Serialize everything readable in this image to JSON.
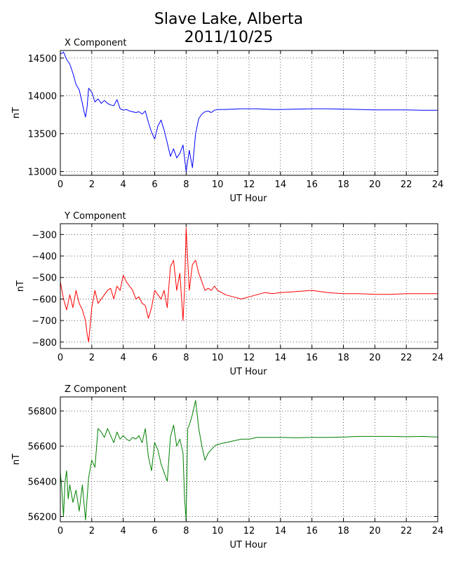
{
  "figure": {
    "title_line1": "Slave Lake, Alberta",
    "title_line2": "2011/10/25"
  },
  "chart_data": [
    {
      "type": "line",
      "title": "X Component",
      "xlabel": "UT Hour",
      "ylabel": "nT",
      "xlim": [
        0,
        24
      ],
      "ylim": [
        12950,
        14600
      ],
      "xticks": [
        0,
        2,
        4,
        6,
        8,
        10,
        12,
        14,
        16,
        18,
        20,
        22,
        24
      ],
      "yticks": [
        13000,
        13500,
        14000,
        14500
      ],
      "grid": true,
      "color": "#0000ff",
      "x": [
        0,
        0.2,
        0.4,
        0.6,
        0.8,
        1.0,
        1.2,
        1.4,
        1.5,
        1.6,
        1.7,
        1.8,
        2.0,
        2.2,
        2.4,
        2.6,
        2.8,
        3.0,
        3.2,
        3.4,
        3.6,
        3.8,
        4.0,
        4.2,
        4.4,
        4.6,
        4.8,
        5.0,
        5.2,
        5.4,
        5.6,
        5.8,
        6.0,
        6.2,
        6.4,
        6.6,
        6.8,
        7.0,
        7.2,
        7.4,
        7.6,
        7.8,
        8.0,
        8.2,
        8.4,
        8.6,
        8.8,
        9.0,
        9.2,
        9.4,
        9.6,
        9.8,
        10.0,
        10.5,
        11.0,
        11.5,
        12.0,
        12.5,
        13.0,
        13.5,
        14.0,
        15.0,
        16.0,
        17.0,
        18.0,
        19.0,
        20.0,
        21.0,
        22.0,
        23.0,
        24.0
      ],
      "y": [
        14550,
        14580,
        14480,
        14420,
        14300,
        14150,
        14080,
        13900,
        13800,
        13720,
        13850,
        14100,
        14050,
        13920,
        13960,
        13900,
        13940,
        13900,
        13880,
        13870,
        13950,
        13830,
        13810,
        13820,
        13800,
        13790,
        13780,
        13790,
        13760,
        13800,
        13650,
        13520,
        13430,
        13600,
        13680,
        13550,
        13380,
        13200,
        13300,
        13180,
        13240,
        13350,
        13000,
        13280,
        13050,
        13500,
        13700,
        13760,
        13790,
        13800,
        13780,
        13810,
        13820,
        13820,
        13825,
        13830,
        13830,
        13830,
        13825,
        13820,
        13820,
        13825,
        13830,
        13830,
        13825,
        13820,
        13815,
        13815,
        13815,
        13810,
        13810
      ]
    },
    {
      "type": "line",
      "title": "Y Component",
      "xlabel": "UT Hour",
      "ylabel": "nT",
      "xlim": [
        0,
        24
      ],
      "ylim": [
        -830,
        -250
      ],
      "xticks": [
        0,
        2,
        4,
        6,
        8,
        10,
        12,
        14,
        16,
        18,
        20,
        22,
        24
      ],
      "yticks": [
        -800,
        -700,
        -600,
        -500,
        -400,
        -300
      ],
      "grid": true,
      "color": "#ff0000",
      "x": [
        0,
        0.2,
        0.4,
        0.6,
        0.8,
        1.0,
        1.2,
        1.4,
        1.6,
        1.7,
        1.8,
        2.0,
        2.2,
        2.4,
        2.6,
        2.8,
        3.0,
        3.2,
        3.4,
        3.6,
        3.8,
        4.0,
        4.2,
        4.4,
        4.6,
        4.8,
        5.0,
        5.2,
        5.4,
        5.6,
        5.8,
        6.0,
        6.2,
        6.4,
        6.6,
        6.8,
        7.0,
        7.2,
        7.4,
        7.6,
        7.8,
        7.9,
        8.0,
        8.1,
        8.2,
        8.4,
        8.6,
        8.8,
        9.0,
        9.2,
        9.4,
        9.6,
        9.8,
        10.0,
        10.5,
        11.0,
        11.5,
        12.0,
        12.5,
        13.0,
        13.5,
        14.0,
        15.0,
        16.0,
        17.0,
        18.0,
        19.0,
        20.0,
        21.0,
        22.0,
        23.0,
        24.0
      ],
      "y": [
        -520,
        -600,
        -650,
        -580,
        -640,
        -560,
        -620,
        -650,
        -700,
        -760,
        -800,
        -640,
        -560,
        -620,
        -600,
        -580,
        -560,
        -550,
        -600,
        -540,
        -560,
        -490,
        -520,
        -540,
        -560,
        -600,
        -590,
        -620,
        -630,
        -690,
        -640,
        -560,
        -580,
        -600,
        -560,
        -640,
        -450,
        -420,
        -560,
        -480,
        -700,
        -550,
        -270,
        -420,
        -560,
        -440,
        -420,
        -480,
        -520,
        -560,
        -550,
        -560,
        -540,
        -560,
        -580,
        -590,
        -600,
        -590,
        -580,
        -570,
        -575,
        -570,
        -565,
        -560,
        -570,
        -575,
        -575,
        -578,
        -578,
        -575,
        -575,
        -575
      ]
    },
    {
      "type": "line",
      "title": "Z Component",
      "xlabel": "UT Hour",
      "ylabel": "nT",
      "xlim": [
        0,
        24
      ],
      "ylim": [
        56170,
        56880
      ],
      "xticks": [
        0,
        2,
        4,
        6,
        8,
        10,
        12,
        14,
        16,
        18,
        20,
        22,
        24
      ],
      "yticks": [
        56200,
        56400,
        56600,
        56800
      ],
      "grid": true,
      "color": "#008000",
      "x": [
        0,
        0.1,
        0.2,
        0.3,
        0.4,
        0.5,
        0.6,
        0.8,
        1.0,
        1.2,
        1.4,
        1.6,
        1.8,
        2.0,
        2.2,
        2.4,
        2.6,
        2.8,
        3.0,
        3.2,
        3.4,
        3.6,
        3.8,
        4.0,
        4.2,
        4.4,
        4.6,
        4.8,
        5.0,
        5.2,
        5.4,
        5.6,
        5.8,
        6.0,
        6.2,
        6.4,
        6.6,
        6.8,
        7.0,
        7.2,
        7.4,
        7.6,
        7.8,
        7.9,
        8.0,
        8.1,
        8.2,
        8.4,
        8.6,
        8.8,
        9.0,
        9.2,
        9.4,
        9.6,
        9.8,
        10.0,
        10.5,
        11.0,
        11.5,
        12.0,
        12.5,
        13.0,
        14.0,
        15.0,
        16.0,
        17.0,
        18.0,
        19.0,
        20.0,
        21.0,
        22.0,
        23.0,
        24.0
      ],
      "y": [
        56450,
        56350,
        56200,
        56400,
        56460,
        56300,
        56380,
        56280,
        56350,
        56230,
        56380,
        56180,
        56420,
        56520,
        56480,
        56700,
        56680,
        56650,
        56700,
        56660,
        56620,
        56680,
        56640,
        56660,
        56640,
        56630,
        56650,
        56640,
        56660,
        56620,
        56700,
        56540,
        56460,
        56620,
        56580,
        56500,
        56450,
        56400,
        56650,
        56720,
        56600,
        56640,
        56560,
        56300,
        56180,
        56700,
        56720,
        56780,
        56860,
        56700,
        56600,
        56520,
        56560,
        56580,
        56600,
        56610,
        56620,
        56630,
        56640,
        56640,
        56650,
        56650,
        56650,
        56648,
        56650,
        56650,
        56652,
        56655,
        56655,
        56655,
        56653,
        56655,
        56652
      ]
    }
  ]
}
